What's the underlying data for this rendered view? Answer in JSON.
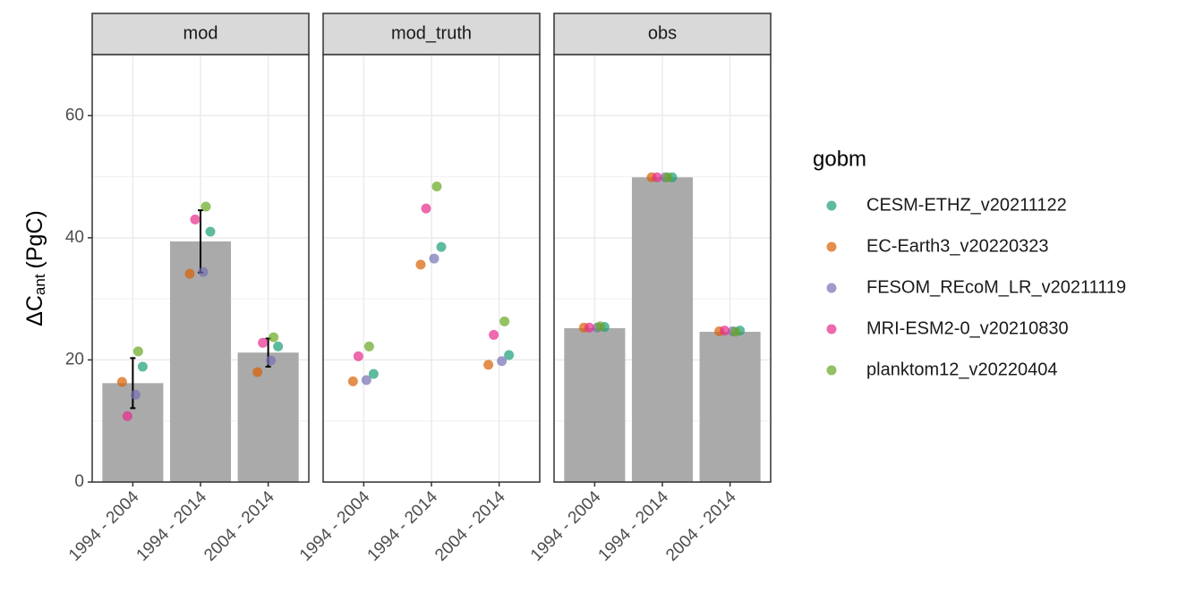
{
  "chart_data": [
    {
      "type": "bar",
      "title": "mod",
      "ylabel": {
        "main": "ΔC",
        "sub": "ant",
        "unit": "(PgC)"
      },
      "legend_title": "gobm",
      "categories": [
        "1994 - 2004",
        "1994 - 2014",
        "2004 - 2014"
      ],
      "values": [
        16.2,
        39.4,
        21.2
      ],
      "errors": [
        4.1,
        5.1,
        2.3
      ],
      "color": "#aaaaaa",
      "ylim": [
        0,
        70
      ],
      "yticks": [
        0,
        20,
        40,
        60
      ],
      "grid": true,
      "series": [
        {
          "name": "CESM-ETHZ_v20211122",
          "color": "#1b9e77",
          "values": [
            18.9,
            41.0,
            22.2
          ]
        },
        {
          "name": "EC-Earth3_v20220323",
          "color": "#d95f02",
          "values": [
            16.4,
            34.1,
            18.0
          ]
        },
        {
          "name": "FESOM_REcoM_LR_v20211119",
          "color": "#7570b3",
          "values": [
            14.3,
            34.4,
            19.9
          ]
        },
        {
          "name": "MRI-ESM2-0_v20210830",
          "color": "#e7298a",
          "values": [
            10.8,
            43.0,
            22.8
          ]
        },
        {
          "name": "planktom12_v20220404",
          "color": "#66a61e",
          "values": [
            21.4,
            45.1,
            23.7
          ]
        }
      ]
    },
    {
      "type": "scatter",
      "title": "mod_truth",
      "categories": [
        "1994 - 2004",
        "1994 - 2014",
        "2004 - 2014"
      ],
      "ylim": [
        0,
        70
      ],
      "yticks": [
        0,
        20,
        40,
        60
      ],
      "grid": true,
      "series": [
        {
          "name": "CESM-ETHZ_v20211122",
          "color": "#1b9e77",
          "values": [
            17.7,
            38.5,
            20.8
          ]
        },
        {
          "name": "EC-Earth3_v20220323",
          "color": "#d95f02",
          "values": [
            16.5,
            35.6,
            19.2
          ]
        },
        {
          "name": "FESOM_REcoM_LR_v20211119",
          "color": "#7570b3",
          "values": [
            16.7,
            36.6,
            19.8
          ]
        },
        {
          "name": "MRI-ESM2-0_v20210830",
          "color": "#e7298a",
          "values": [
            20.6,
            44.8,
            24.1
          ]
        },
        {
          "name": "planktom12_v20220404",
          "color": "#66a61e",
          "values": [
            22.2,
            48.4,
            26.3
          ]
        }
      ]
    },
    {
      "type": "bar",
      "title": "obs",
      "categories": [
        "1994 - 2004",
        "1994 - 2014",
        "2004 - 2014"
      ],
      "values": [
        25.2,
        49.9,
        24.6
      ],
      "color": "#aaaaaa",
      "ylim": [
        0,
        70
      ],
      "yticks": [
        0,
        20,
        40,
        60
      ],
      "grid": true,
      "series": [
        {
          "name": "CESM-ETHZ_v20211122",
          "color": "#1b9e77",
          "values": [
            25.4,
            49.9,
            24.8
          ]
        },
        {
          "name": "EC-Earth3_v20220323",
          "color": "#d95f02",
          "values": [
            25.3,
            49.9,
            24.7
          ]
        },
        {
          "name": "FESOM_REcoM_LR_v20211119",
          "color": "#7570b3",
          "values": [
            25.3,
            49.9,
            24.7
          ]
        },
        {
          "name": "MRI-ESM2-0_v20210830",
          "color": "#e7298a",
          "values": [
            25.3,
            49.9,
            24.8
          ]
        },
        {
          "name": "planktom12_v20220404",
          "color": "#66a61e",
          "values": [
            25.5,
            49.9,
            24.6
          ]
        }
      ]
    }
  ]
}
